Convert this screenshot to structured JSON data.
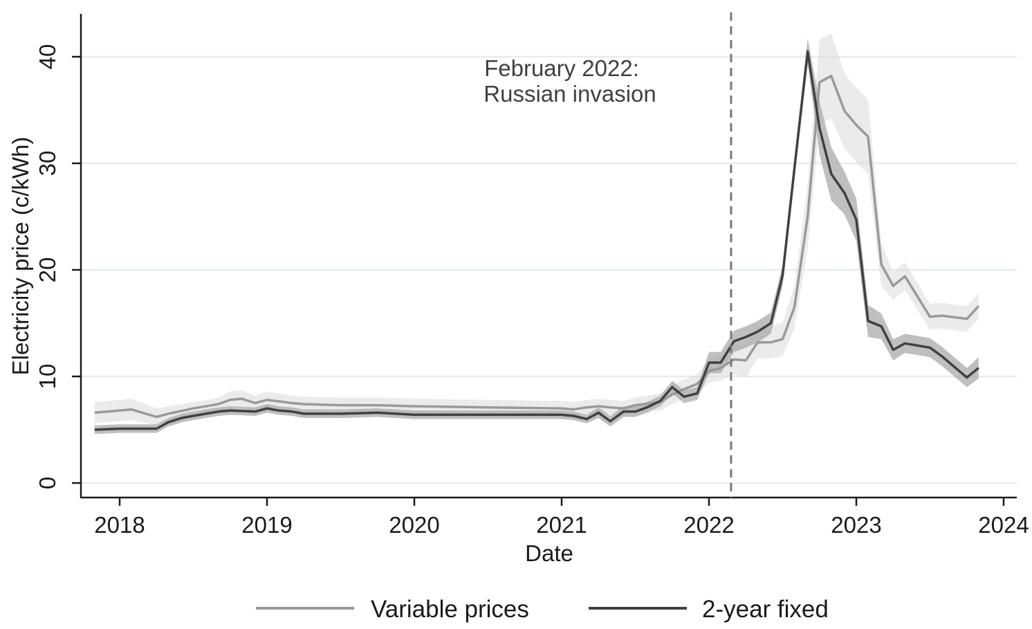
{
  "chart_data": {
    "type": "line",
    "title": "",
    "xlabel": "Date",
    "ylabel": "Electricity price (c/kWh)",
    "xlim": [
      2017.7,
      2024.1
    ],
    "ylim": [
      -1.5,
      44
    ],
    "xticks": [
      2018,
      2019,
      2020,
      2021,
      2022,
      2023,
      2024
    ],
    "xtick_labels": [
      "2018",
      "2019",
      "2020",
      "2021",
      "2022",
      "2023",
      "2024"
    ],
    "yticks": [
      0,
      10,
      20,
      30,
      40
    ],
    "ytick_labels": [
      "0",
      "10",
      "20",
      "30",
      "40"
    ],
    "grid": "horizontal",
    "legend_position": "bottom",
    "annotation": {
      "x": 2022.15,
      "line1": "February 2022:",
      "line2": "Russian invasion",
      "style": "dashed vertical line"
    },
    "series": [
      {
        "name": "Variable prices",
        "color": "#999999",
        "band_color": "#dadada",
        "x": [
          2017.83,
          2018.0,
          2018.08,
          2018.25,
          2018.33,
          2018.5,
          2018.67,
          2018.75,
          2018.83,
          2018.92,
          2019.0,
          2019.17,
          2019.25,
          2019.5,
          2019.75,
          2020.0,
          2020.5,
          2021.0,
          2021.08,
          2021.17,
          2021.25,
          2021.33,
          2021.42,
          2021.5,
          2021.67,
          2021.75,
          2021.83,
          2021.92,
          2022.0,
          2022.08,
          2022.17,
          2022.25,
          2022.33,
          2022.42,
          2022.5,
          2022.58,
          2022.67,
          2022.75,
          2022.83,
          2022.92,
          2023.0,
          2023.08,
          2023.17,
          2023.25,
          2023.33,
          2023.5,
          2023.58,
          2023.75,
          2023.83
        ],
        "values": [
          6.6,
          6.8,
          6.9,
          6.2,
          6.5,
          7.0,
          7.4,
          7.8,
          7.9,
          7.5,
          7.8,
          7.5,
          7.4,
          7.3,
          7.3,
          7.2,
          7.1,
          7.0,
          6.9,
          7.1,
          7.2,
          7.1,
          7.0,
          7.3,
          7.6,
          8.3,
          8.8,
          9.3,
          10.5,
          10.8,
          11.6,
          11.5,
          13.2,
          13.2,
          13.5,
          16.5,
          25.0,
          37.6,
          38.2,
          34.9,
          33.6,
          32.5,
          20.5,
          18.5,
          19.4,
          15.6,
          15.7,
          15.4,
          16.6
        ],
        "ci_halfwidth": [
          1.0,
          1.0,
          1.0,
          0.8,
          0.7,
          0.6,
          0.6,
          0.8,
          0.8,
          0.7,
          0.8,
          0.7,
          0.7,
          0.7,
          0.7,
          0.7,
          0.7,
          0.7,
          0.7,
          0.7,
          0.7,
          0.7,
          0.7,
          0.7,
          0.8,
          0.9,
          0.9,
          0.9,
          1.1,
          1.2,
          1.4,
          1.6,
          1.5,
          1.5,
          1.6,
          2.0,
          3.0,
          4.0,
          4.0,
          3.5,
          3.5,
          3.5,
          2.0,
          1.3,
          1.3,
          1.2,
          1.2,
          1.2,
          1.2
        ]
      },
      {
        "name": "2-year fixed",
        "color": "#404040",
        "band_color": "#aaaaaa",
        "x": [
          2017.83,
          2018.0,
          2018.08,
          2018.25,
          2018.33,
          2018.42,
          2018.5,
          2018.67,
          2018.75,
          2018.92,
          2019.0,
          2019.08,
          2019.17,
          2019.25,
          2019.5,
          2019.75,
          2020.0,
          2020.5,
          2021.0,
          2021.08,
          2021.17,
          2021.25,
          2021.33,
          2021.42,
          2021.5,
          2021.58,
          2021.67,
          2021.75,
          2021.83,
          2021.92,
          2022.0,
          2022.08,
          2022.17,
          2022.25,
          2022.33,
          2022.42,
          2022.5,
          2022.58,
          2022.67,
          2022.75,
          2022.83,
          2022.92,
          2023.0,
          2023.08,
          2023.17,
          2023.25,
          2023.33,
          2023.5,
          2023.58,
          2023.75,
          2023.83
        ],
        "values": [
          5.0,
          5.1,
          5.1,
          5.1,
          5.7,
          6.1,
          6.3,
          6.7,
          6.8,
          6.7,
          7.0,
          6.8,
          6.7,
          6.5,
          6.5,
          6.6,
          6.4,
          6.4,
          6.4,
          6.3,
          6.0,
          6.6,
          5.8,
          6.7,
          6.7,
          7.1,
          7.7,
          9.0,
          8.1,
          8.4,
          11.3,
          11.3,
          13.3,
          13.7,
          14.2,
          15.0,
          19.5,
          29.5,
          40.5,
          33.3,
          29.0,
          27.2,
          24.7,
          15.2,
          14.7,
          12.5,
          13.1,
          12.7,
          11.9,
          9.9,
          10.8
        ],
        "ci_halfwidth": [
          0.4,
          0.4,
          0.4,
          0.4,
          0.4,
          0.4,
          0.4,
          0.4,
          0.4,
          0.4,
          0.4,
          0.4,
          0.4,
          0.4,
          0.4,
          0.4,
          0.4,
          0.4,
          0.4,
          0.4,
          0.4,
          0.5,
          0.5,
          0.5,
          0.5,
          0.5,
          0.5,
          0.6,
          0.6,
          0.6,
          1.0,
          1.0,
          1.0,
          1.0,
          1.0,
          1.0,
          1.0,
          1.0,
          1.2,
          2.5,
          2.5,
          2.0,
          2.0,
          1.5,
          1.2,
          1.0,
          0.9,
          0.9,
          0.9,
          0.9,
          1.0
        ]
      }
    ]
  }
}
